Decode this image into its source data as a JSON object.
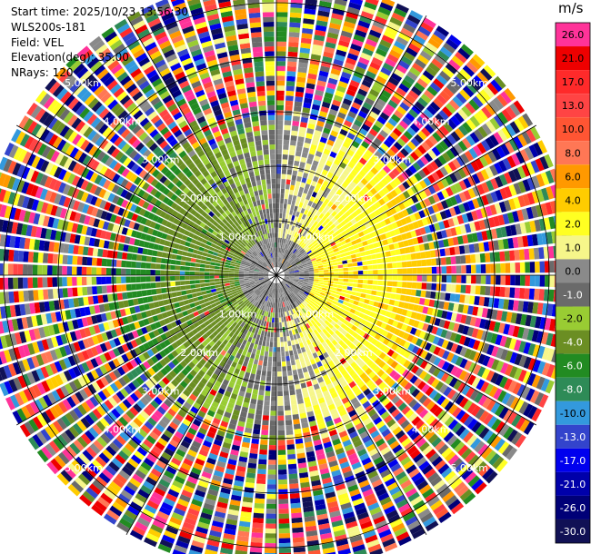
{
  "info": {
    "start_time": "Start time: 2025/10/23 13:56:30",
    "instrument": "WLS200s-181",
    "field": "Field: VEL",
    "elevation": "Elevation(deg): 35.00",
    "nrays": "NRays: 120"
  },
  "colorbar": {
    "unit": "m/s",
    "levels": [
      {
        "label": "26.0",
        "color": "#ff3399"
      },
      {
        "label": "21.0",
        "color": "#ee0000"
      },
      {
        "label": "17.0",
        "color": "#ff2a2a"
      },
      {
        "label": "13.0",
        "color": "#ff4444"
      },
      {
        "label": "10.0",
        "color": "#ff5533"
      },
      {
        "label": "8.0",
        "color": "#ff7755"
      },
      {
        "label": "6.0",
        "color": "#ff9900"
      },
      {
        "label": "4.0",
        "color": "#ffcc00"
      },
      {
        "label": "2.0",
        "color": "#ffff22"
      },
      {
        "label": "1.0",
        "color": "#f6f68a"
      },
      {
        "label": "0.0",
        "color": "#8a8a8a"
      },
      {
        "label": "-1.0",
        "color": "#6a6a6a"
      },
      {
        "label": "-2.0",
        "color": "#99cc33"
      },
      {
        "label": "-4.0",
        "color": "#6b8e23"
      },
      {
        "label": "-6.0",
        "color": "#228b22"
      },
      {
        "label": "-8.0",
        "color": "#2e8b57"
      },
      {
        "label": "-10.0",
        "color": "#3399dd"
      },
      {
        "label": "-13.0",
        "color": "#3344cc"
      },
      {
        "label": "-17.0",
        "color": "#0000ee"
      },
      {
        "label": "-21.0",
        "color": "#0000aa"
      },
      {
        "label": "-26.0",
        "color": "#000077"
      },
      {
        "label": "-30.0",
        "color": "#111155"
      }
    ]
  },
  "chart_data": {
    "type": "heatmap",
    "title": "",
    "field": "VEL",
    "nrays": 120,
    "elevation_deg": 35.0,
    "range_ring_labels": [
      "1.00km",
      "2.00km",
      "3.00km",
      "4.00km",
      "5.00km"
    ],
    "range_rings_km": [
      1,
      2,
      3,
      4,
      5
    ],
    "max_range_km": 5.4,
    "grid": true,
    "colorbar_position": "right",
    "velocity_pattern": {
      "inner_radius_km": 3.1,
      "east_sector_ms": 4.0,
      "west_sector_ms": -6.0,
      "center_ms": 0.0,
      "outer_zone": "noise (all colors)"
    }
  }
}
